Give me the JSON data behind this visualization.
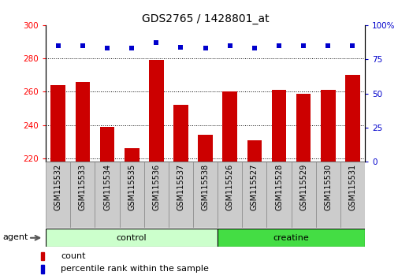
{
  "title": "GDS2765 / 1428801_at",
  "categories": [
    "GSM115532",
    "GSM115533",
    "GSM115534",
    "GSM115535",
    "GSM115536",
    "GSM115537",
    "GSM115538",
    "GSM115526",
    "GSM115527",
    "GSM115528",
    "GSM115529",
    "GSM115530",
    "GSM115531"
  ],
  "count_values": [
    264,
    266,
    239,
    226,
    279,
    252,
    234,
    260,
    231,
    261,
    259,
    261,
    270
  ],
  "percentile_values": [
    85,
    85,
    83,
    83,
    87,
    84,
    83,
    85,
    83,
    85,
    85,
    85,
    85
  ],
  "control_count": 7,
  "creatine_count": 6,
  "bar_color": "#CC0000",
  "dot_color": "#0000CC",
  "control_color": "#CCFFCC",
  "creatine_color": "#44DD44",
  "tick_label_bg": "#CCCCCC",
  "ylim_left": [
    218,
    300
  ],
  "ylim_right": [
    0,
    100
  ],
  "yticks_left": [
    220,
    240,
    260,
    280,
    300
  ],
  "yticks_right": [
    0,
    25,
    50,
    75,
    100
  ],
  "agent_label": "agent",
  "legend_count_label": "count",
  "legend_percentile_label": "percentile rank within the sample",
  "bar_width": 0.6,
  "title_fontsize": 10,
  "tick_fontsize": 7.5,
  "label_fontsize": 7,
  "group_fontsize": 8
}
